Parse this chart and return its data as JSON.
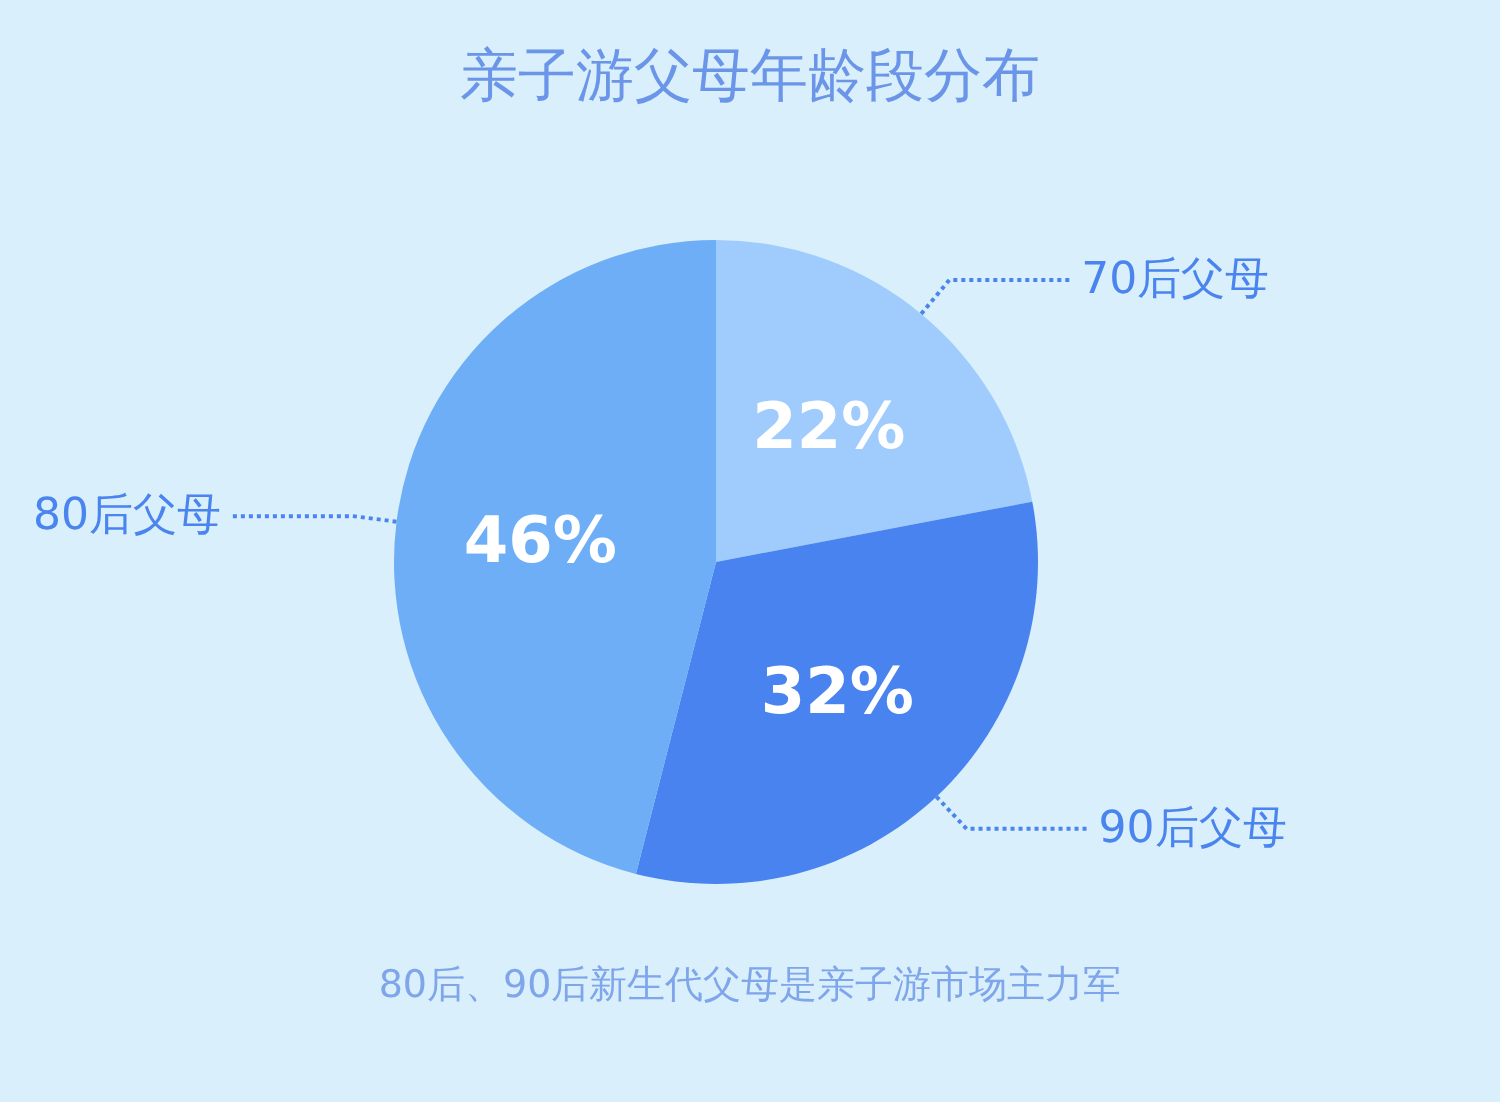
{
  "chart_data": {
    "type": "pie",
    "title": "亲子游父母年龄段分布",
    "categories": [
      "70后父母",
      "90后父母",
      "80后父母"
    ],
    "values": [
      22,
      32,
      46
    ],
    "value_labels": [
      "22%",
      "32%",
      "46%"
    ],
    "colors": [
      "#a0cbfd",
      "#4883f0",
      "#6daef7"
    ],
    "annotations": [
      "80后、90后新生代父母是亲子游市场主力军"
    ]
  }
}
